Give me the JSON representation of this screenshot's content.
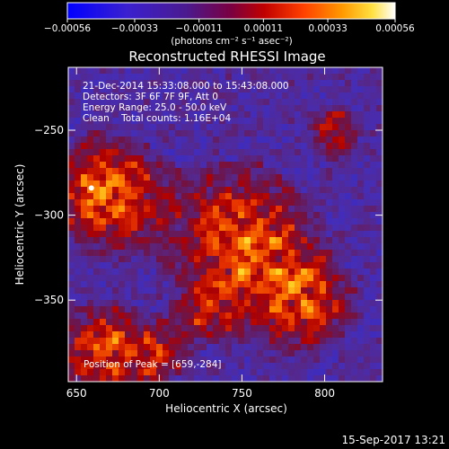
{
  "chart_data": {
    "type": "heatmap",
    "title": "Reconstructed RHESSI Image",
    "xlabel": "Heliocentric X (arcsec)",
    "ylabel": "Heliocentric Y (arcsec)",
    "xlim": [
      645,
      835
    ],
    "ylim": [
      -398,
      -213
    ],
    "x_ticks": [
      650,
      700,
      750,
      800
    ],
    "y_ticks": [
      -350,
      -300,
      -250
    ],
    "x_tick_labels": [
      "650",
      "700",
      "750",
      "800"
    ],
    "y_tick_labels": [
      "−350",
      "−300",
      "−250"
    ],
    "colorbar": {
      "range": [
        -0.00056,
        0.00056
      ],
      "ticks": [
        -0.00056,
        -0.00033,
        -0.00011,
        0.00011,
        0.00033,
        0.00056
      ],
      "tick_labels": [
        "−0.00056",
        "−0.00033",
        "−0.00011",
        "0.00011",
        "0.00033",
        "0.00056"
      ],
      "unit_label": "(photons cm⁻² s⁻¹ asec⁻²)"
    },
    "annotations": [
      "21-Dec-2014 15:33:08.000 to 15:43:08.000",
      "Detectors: 3F 6F 7F 9F, Att 0",
      "Energy Range: 25.0 - 50.0 keV",
      "Clean    Total counts: 1.16E+04"
    ],
    "peak_label": "Position of Peak = [659,-284]",
    "peak": [
      659,
      -284
    ],
    "grid": false,
    "colors": {
      "background": "#000000",
      "axes": "#ffffff",
      "map_low": "#2a2ad8",
      "map_mid": "#5a2a9a",
      "map_high": "#ffffff"
    }
  },
  "footer": {
    "timestamp": "15-Sep-2017 13:21"
  }
}
